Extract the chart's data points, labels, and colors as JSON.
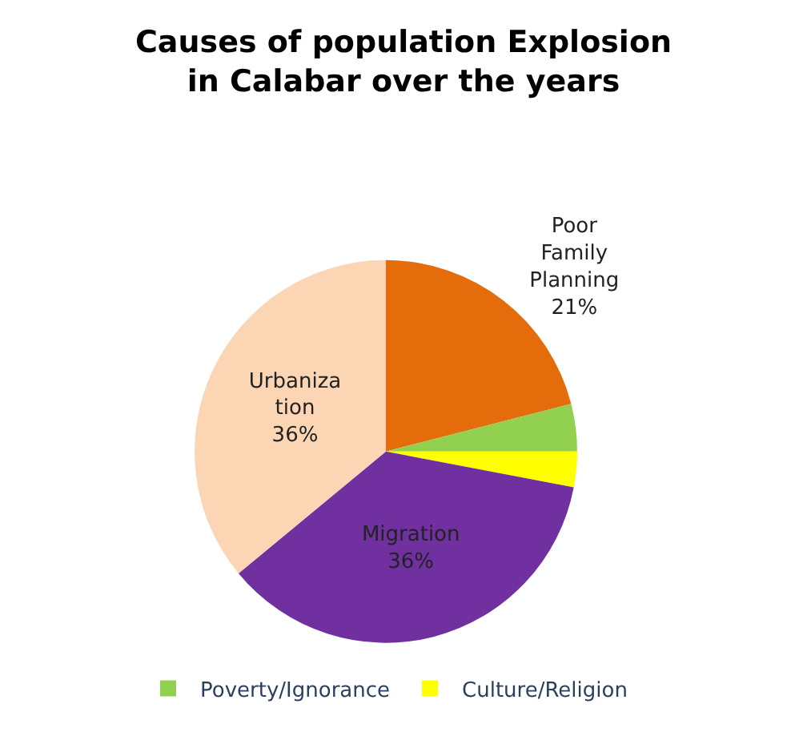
{
  "chart_data": {
    "type": "pie",
    "title": "Causes of population Explosion\nin Calabar over the years",
    "categories": [
      "Poor Family Planning",
      "Poverty/Ignorance",
      "Culture/Religion",
      "Migration",
      "Urbanization"
    ],
    "values": [
      21,
      4,
      3,
      36,
      36
    ],
    "colors": [
      "#e46c0a",
      "#92d050",
      "#ffff00",
      "#7030a0",
      "#fcd5b5"
    ],
    "value_labels": [
      "21%",
      null,
      null,
      "36%",
      "36%"
    ],
    "legend": "bottom"
  }
}
